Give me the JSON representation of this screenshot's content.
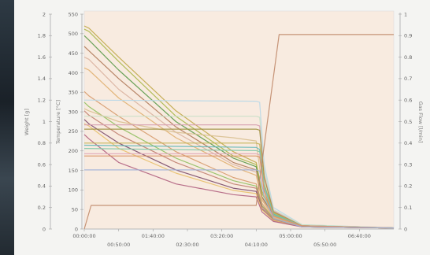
{
  "chart_data": {
    "type": "line",
    "title": "",
    "xlabel": "",
    "ylabel_weight": "Weight [g]",
    "ylabel_temperature": "Temperature [°C]",
    "ylabel_gasflow": "Gas Flow [l/min]",
    "xlim": [
      0,
      27000
    ],
    "ylim_weight": [
      0,
      2.0
    ],
    "ylim_temperature": [
      0,
      550
    ],
    "ylim_gasflow": [
      0,
      1.0
    ],
    "x_ticks_upper": [
      "00:00:00",
      "01:40:00",
      "03:20:00",
      "05:00:00",
      "06:40:00"
    ],
    "x_ticks_lower": [
      "00:50:00",
      "02:30:00",
      "04:10:00",
      "05:50:00"
    ],
    "y_ticks_weight": [
      "0",
      "0.2",
      "0.4",
      "0.6",
      "0.8",
      "1",
      "1.2",
      "1.4",
      "1.6",
      "1.8",
      "2"
    ],
    "y_ticks_temperature": [
      "0",
      "50",
      "100",
      "150",
      "200",
      "250",
      "300",
      "350",
      "400",
      "450",
      "500",
      "550"
    ],
    "y_ticks_gasflow": [
      "0",
      "0.1",
      "0.2",
      "0.3",
      "0.4",
      "0.5",
      "0.6",
      "0.7",
      "0.8",
      "0.9",
      "1"
    ],
    "grid": false,
    "series": [
      {
        "color": "#c0a84a",
        "x": [
          0,
          400,
          3000,
          8000,
          13000,
          15000,
          15500,
          16500,
          19000,
          27000
        ],
        "y": [
          1.89,
          1.87,
          1.6,
          1.1,
          0.72,
          0.62,
          0.35,
          0.15,
          0.03,
          0.01
        ]
      },
      {
        "color": "#a8b84a",
        "x": [
          0,
          400,
          3000,
          8000,
          13000,
          15000,
          15500,
          16500,
          19000,
          27000
        ],
        "y": [
          1.86,
          1.84,
          1.56,
          1.05,
          0.68,
          0.6,
          0.33,
          0.14,
          0.03,
          0.01
        ]
      },
      {
        "color": "#5a9a4a",
        "x": [
          0,
          400,
          3000,
          8000,
          13000,
          15000,
          15500,
          16500,
          19000,
          27000
        ],
        "y": [
          1.8,
          1.76,
          1.48,
          1.0,
          0.66,
          0.58,
          0.3,
          0.13,
          0.02,
          0.01
        ]
      },
      {
        "color": "#b07a5a",
        "x": [
          0,
          400,
          3000,
          8000,
          13000,
          15000,
          15500,
          16500,
          19000,
          27000
        ],
        "y": [
          1.7,
          1.66,
          1.4,
          0.95,
          0.62,
          0.55,
          0.3,
          0.12,
          0.02,
          0.01
        ]
      },
      {
        "color": "#d9b2a0",
        "x": [
          0,
          400,
          3000,
          8000,
          13000,
          15000,
          15500,
          16500,
          19000,
          27000
        ],
        "y": [
          1.6,
          1.58,
          1.3,
          0.9,
          0.6,
          0.53,
          0.28,
          0.12,
          0.02,
          0.01
        ]
      },
      {
        "color": "#e0b070",
        "x": [
          0,
          400,
          3000,
          8000,
          13000,
          15000,
          15500,
          16500,
          19000,
          27000
        ],
        "y": [
          1.5,
          1.48,
          1.22,
          0.85,
          0.58,
          0.5,
          0.27,
          0.11,
          0.02,
          0.01
        ]
      },
      {
        "color": "#d69a6a",
        "x": [
          0,
          400,
          3000,
          8000,
          13000,
          15000,
          15500,
          16500,
          19000,
          27000
        ],
        "y": [
          1.28,
          1.24,
          1.05,
          0.72,
          0.48,
          0.42,
          0.24,
          0.1,
          0.02,
          0.01
        ]
      },
      {
        "color": "#90c060",
        "x": [
          0,
          400,
          3000,
          8000,
          13000,
          15000,
          15500,
          16500,
          19000,
          27000
        ],
        "y": [
          1.18,
          1.14,
          0.95,
          0.66,
          0.45,
          0.4,
          0.22,
          0.1,
          0.02,
          0.01
        ]
      },
      {
        "color": "#c08070",
        "x": [
          0,
          400,
          3000,
          8000,
          13000,
          15000,
          15500,
          16500,
          19000,
          27000
        ],
        "y": [
          1.1,
          1.06,
          0.88,
          0.62,
          0.42,
          0.38,
          0.21,
          0.09,
          0.02,
          0.01
        ]
      },
      {
        "color": "#7a4a6a",
        "x": [
          0,
          400,
          3000,
          8000,
          13000,
          15000,
          15500,
          16500,
          19000,
          27000
        ],
        "y": [
          1.02,
          0.98,
          0.8,
          0.55,
          0.38,
          0.35,
          0.19,
          0.08,
          0.02,
          0.01
        ]
      },
      {
        "color": "#e8c06a",
        "x": [
          0,
          400,
          3000,
          8000,
          13000,
          15000,
          15500,
          16500,
          19000,
          27000
        ],
        "y": [
          0.98,
          0.96,
          0.75,
          0.52,
          0.36,
          0.33,
          0.18,
          0.08,
          0.02,
          0.01
        ]
      },
      {
        "color": "#b06080",
        "x": [
          0,
          400,
          3000,
          8000,
          13000,
          15000,
          15500,
          16500,
          19000,
          27000
        ],
        "y": [
          0.88,
          0.84,
          0.62,
          0.42,
          0.32,
          0.3,
          0.16,
          0.07,
          0.02,
          0.01
        ]
      },
      {
        "color": "#d8c090",
        "x": [
          0,
          400,
          3000,
          8000,
          13000,
          15000,
          15500,
          16500,
          19000,
          27000
        ],
        "y": [
          1.12,
          1.1,
          1.0,
          0.9,
          0.85,
          0.82,
          0.4,
          0.15,
          0.03,
          0.01
        ]
      },
      {
        "color": "#b8d8e8",
        "x": [
          0,
          15000,
          15300,
          15700,
          16500,
          19000,
          27000
        ],
        "y": [
          1.2,
          1.19,
          1.18,
          0.6,
          0.2,
          0.04,
          0.01
        ]
      },
      {
        "color": "#c8e0c8",
        "x": [
          0,
          15000,
          15300,
          15700,
          16500,
          19000,
          27000
        ],
        "y": [
          1.05,
          1.05,
          1.04,
          0.55,
          0.18,
          0.04,
          0.01
        ]
      },
      {
        "color": "#d6a0b0",
        "x": [
          0,
          15000,
          15300,
          15700,
          16500,
          19000,
          27000
        ],
        "y": [
          0.97,
          0.97,
          0.96,
          0.5,
          0.17,
          0.03,
          0.01
        ]
      },
      {
        "color": "#a09040",
        "x": [
          0,
          15000,
          15300,
          15700,
          16500,
          19000,
          27000
        ],
        "y": [
          0.93,
          0.93,
          0.92,
          0.48,
          0.16,
          0.03,
          0.01
        ]
      },
      {
        "color": "#c0b050",
        "x": [
          0,
          15000,
          15300,
          15700,
          16500,
          19000,
          27000
        ],
        "y": [
          0.8,
          0.8,
          0.79,
          0.42,
          0.15,
          0.03,
          0.01
        ]
      },
      {
        "color": "#60b8b8",
        "x": [
          0,
          15000,
          15300,
          15700,
          16500,
          19000,
          27000
        ],
        "y": [
          0.78,
          0.76,
          0.74,
          0.4,
          0.14,
          0.03,
          0.01
        ]
      },
      {
        "color": "#80c8a8",
        "x": [
          0,
          15000,
          15300,
          15700,
          16500,
          19000,
          27000
        ],
        "y": [
          0.75,
          0.73,
          0.72,
          0.38,
          0.13,
          0.03,
          0.01
        ]
      },
      {
        "color": "#e0a8b8",
        "x": [
          0,
          15000,
          15300,
          15700,
          16500,
          19000,
          27000
        ],
        "y": [
          0.7,
          0.7,
          0.69,
          0.36,
          0.12,
          0.03,
          0.01
        ]
      },
      {
        "color": "#d89060",
        "x": [
          0,
          15000,
          15300,
          15700,
          16500,
          19000,
          27000
        ],
        "y": [
          0.68,
          0.68,
          0.67,
          0.35,
          0.12,
          0.03,
          0.01
        ]
      },
      {
        "color": "#a0b0d8",
        "x": [
          0,
          15000,
          15300,
          15700,
          16500,
          19000,
          27000
        ],
        "y": [
          0.55,
          0.55,
          0.54,
          0.3,
          0.1,
          0.02,
          0.01
        ]
      },
      {
        "color": "#c08a6a",
        "x": [
          0,
          600,
          15000,
          17000,
          27000
        ],
        "y": [
          0.0,
          0.22,
          0.22,
          1.81,
          1.81
        ]
      }
    ]
  }
}
